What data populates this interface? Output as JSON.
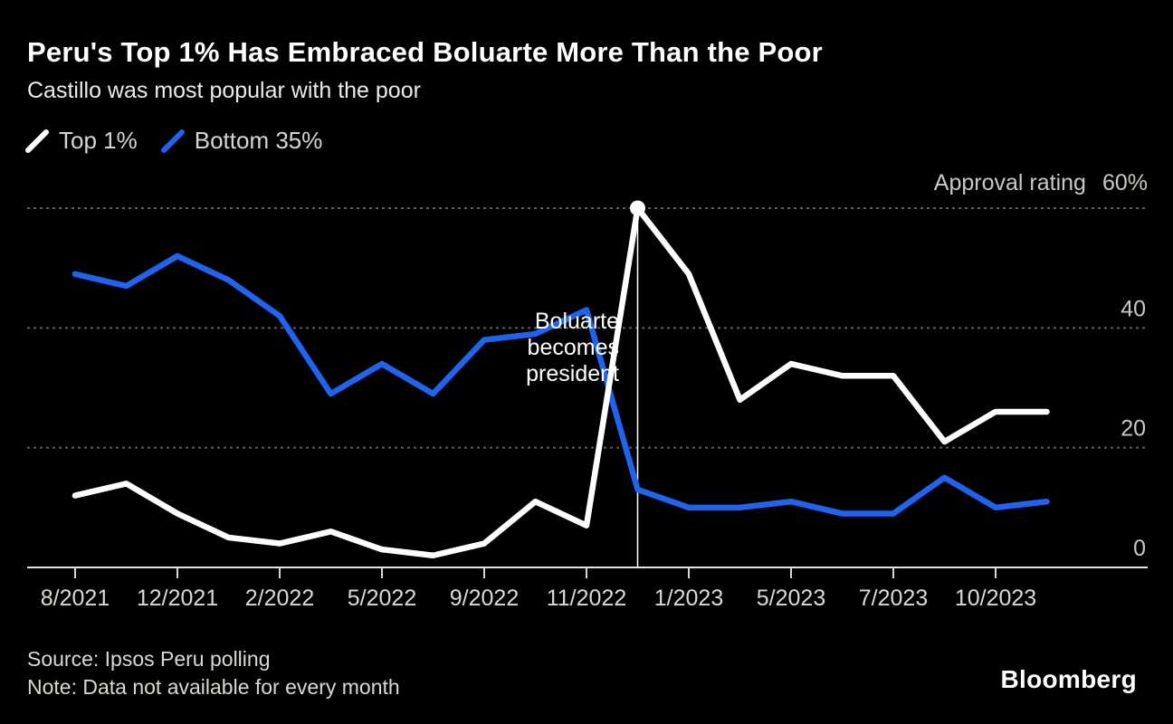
{
  "header": {
    "title": "Peru's Top 1% Has Embraced Boluarte More Than the Poor",
    "subtitle": "Castillo was most popular with the poor"
  },
  "chart_data": {
    "type": "line",
    "title": "Peru's Top 1% Has Embraced Boluarte More Than the Poor",
    "subtitle": "Castillo was most popular with the poor",
    "ylabel": "Approval rating",
    "ylim": [
      0,
      60
    ],
    "grid": "horizontal-dashed",
    "legend_position": "top-left",
    "background": "#000000",
    "x_tick_labels": [
      "8/2021",
      "12/2021",
      "2/2022",
      "5/2022",
      "9/2022",
      "11/2022",
      "1/2023",
      "5/2023",
      "7/2023",
      "10/2023"
    ],
    "x_tick_indices": [
      0,
      2,
      4,
      6,
      8,
      10,
      12,
      14,
      16,
      18
    ],
    "n_points": 20,
    "y_ticks": [
      {
        "value": 60,
        "label": "60%"
      },
      {
        "value": 40,
        "label": "40"
      },
      {
        "value": 20,
        "label": "20"
      },
      {
        "value": 0,
        "label": "0"
      }
    ],
    "series": [
      {
        "name": "Top 1%",
        "color": "#ffffff",
        "values": [
          12,
          14,
          9,
          5,
          4,
          6,
          3,
          2,
          4,
          11,
          7,
          60,
          49,
          28,
          34,
          32,
          32,
          21,
          26,
          26
        ]
      },
      {
        "name": "Bottom 35%",
        "color": "#1f63ee",
        "values": [
          49,
          47,
          52,
          48,
          42,
          29,
          34,
          29,
          38,
          39,
          43,
          13,
          10,
          10,
          11,
          9,
          9,
          15,
          10,
          11
        ]
      }
    ],
    "annotation": {
      "lines": [
        "Boluarte",
        "becomes",
        "president"
      ],
      "point_index": 11,
      "value": 60,
      "series": "Top 1%"
    },
    "colors": {
      "grid": "#5e5e5e",
      "axis": "#e6e3de",
      "tick_text": "#dcd9d4"
    }
  },
  "footer": {
    "source": "Source: Ipsos Peru polling",
    "note": "Note: Data not available for every month",
    "logo": "Bloomberg"
  }
}
